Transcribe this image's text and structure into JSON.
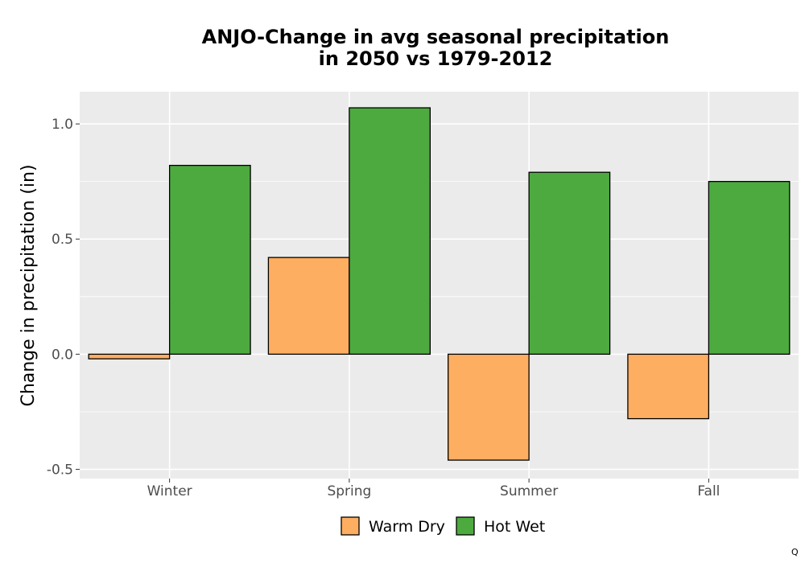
{
  "chart_data": {
    "type": "bar",
    "title_line1": "ANJO-Change in avg seasonal precipitation",
    "title_line2": "in 2050 vs 1979-2012",
    "xlabel": "",
    "ylabel": "Change in precipitation (in)",
    "categories": [
      "Winter",
      "Spring",
      "Summer",
      "Fall"
    ],
    "series": [
      {
        "name": "Warm Dry",
        "color": "#FDAE61",
        "values": [
          -0.02,
          0.42,
          -0.46,
          -0.28
        ]
      },
      {
        "name": "Hot Wet",
        "color": "#4DAA3F",
        "values": [
          0.82,
          1.07,
          0.79,
          0.75
        ]
      }
    ],
    "ylim": [
      -0.54,
      1.14
    ],
    "yticks": [
      -0.5,
      0.0,
      0.5,
      1.0
    ],
    "ytick_labels": [
      "-0.5",
      "0.0",
      "0.5",
      "1.0"
    ],
    "grid": true,
    "legend_position": "bottom",
    "panel_background": "#EBEBEB"
  },
  "corner_mark": "Q"
}
